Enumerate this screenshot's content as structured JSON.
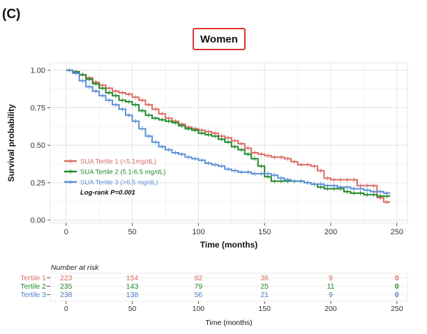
{
  "panel_label": "(C)",
  "chart_data": {
    "type": "line",
    "title": "Women",
    "xlabel": "Time (months)",
    "ylabel": "Survival probability",
    "xlim": [
      -12,
      258
    ],
    "ylim": [
      -0.02,
      1.05
    ],
    "xticks": [
      0,
      50,
      100,
      150,
      200,
      250
    ],
    "xtick_labels": [
      "0",
      "50",
      "100",
      "150",
      "200",
      "250"
    ],
    "yticks": [
      0,
      0.25,
      0.5,
      0.75,
      1.0
    ],
    "ytick_labels": [
      "0.00",
      "0.25",
      "0.50",
      "0.75",
      "1.00"
    ],
    "grid": true,
    "legend_position": "lower-left",
    "annotation": "Log-rank P=0.001",
    "series": [
      {
        "name": "SUA Tertile 1 (<5.1mg/dL)",
        "color": "#d96b63",
        "x": [
          0,
          5,
          10,
          15,
          20,
          25,
          30,
          35,
          40,
          45,
          50,
          55,
          60,
          65,
          70,
          75,
          80,
          85,
          90,
          95,
          100,
          105,
          110,
          115,
          120,
          125,
          130,
          135,
          140,
          145,
          150,
          155,
          160,
          165,
          170,
          175,
          180,
          185,
          190,
          195,
          200,
          205,
          210,
          215,
          220,
          225,
          230,
          235,
          240,
          245
        ],
        "y": [
          1.0,
          0.99,
          0.97,
          0.95,
          0.92,
          0.9,
          0.88,
          0.86,
          0.85,
          0.84,
          0.82,
          0.8,
          0.77,
          0.74,
          0.71,
          0.68,
          0.66,
          0.64,
          0.62,
          0.61,
          0.6,
          0.59,
          0.58,
          0.56,
          0.55,
          0.53,
          0.51,
          0.48,
          0.45,
          0.44,
          0.43,
          0.42,
          0.42,
          0.41,
          0.39,
          0.37,
          0.37,
          0.36,
          0.33,
          0.28,
          0.27,
          0.27,
          0.27,
          0.27,
          0.23,
          0.23,
          0.23,
          0.15,
          0.12,
          0.12
        ]
      },
      {
        "name": "SUA Tertile 2 (5.1-6.5 mg/dL)",
        "color": "#1f8a2a",
        "x": [
          0,
          5,
          10,
          15,
          20,
          25,
          30,
          35,
          40,
          45,
          50,
          55,
          60,
          65,
          70,
          75,
          80,
          85,
          90,
          95,
          100,
          105,
          110,
          115,
          120,
          125,
          130,
          135,
          140,
          145,
          150,
          155,
          160,
          165,
          170,
          175,
          180,
          185,
          190,
          195,
          200,
          205,
          210,
          215,
          220,
          225,
          230,
          235,
          240,
          245
        ],
        "y": [
          1.0,
          0.99,
          0.97,
          0.94,
          0.91,
          0.88,
          0.85,
          0.83,
          0.8,
          0.79,
          0.77,
          0.73,
          0.7,
          0.68,
          0.67,
          0.66,
          0.65,
          0.63,
          0.61,
          0.6,
          0.58,
          0.57,
          0.56,
          0.54,
          0.52,
          0.49,
          0.47,
          0.44,
          0.41,
          0.36,
          0.29,
          0.26,
          0.26,
          0.26,
          0.26,
          0.26,
          0.25,
          0.24,
          0.22,
          0.21,
          0.21,
          0.21,
          0.19,
          0.18,
          0.18,
          0.17,
          0.17,
          0.16,
          0.16,
          0.16
        ]
      },
      {
        "name": "SUA Tertile 3 (>6.5 mg/dL)",
        "color": "#5b8fd6",
        "x": [
          0,
          5,
          10,
          15,
          20,
          25,
          30,
          35,
          40,
          45,
          50,
          55,
          60,
          65,
          70,
          75,
          80,
          85,
          90,
          95,
          100,
          105,
          110,
          115,
          120,
          125,
          130,
          135,
          140,
          145,
          150,
          155,
          160,
          165,
          170,
          175,
          180,
          185,
          190,
          195,
          200,
          205,
          210,
          215,
          220,
          225,
          230,
          235,
          240,
          245
        ],
        "y": [
          1.0,
          0.98,
          0.93,
          0.89,
          0.86,
          0.83,
          0.8,
          0.77,
          0.74,
          0.7,
          0.66,
          0.61,
          0.56,
          0.52,
          0.49,
          0.47,
          0.45,
          0.44,
          0.42,
          0.41,
          0.4,
          0.38,
          0.37,
          0.36,
          0.34,
          0.33,
          0.32,
          0.32,
          0.31,
          0.31,
          0.31,
          0.3,
          0.28,
          0.27,
          0.26,
          0.26,
          0.25,
          0.24,
          0.24,
          0.23,
          0.23,
          0.22,
          0.22,
          0.21,
          0.21,
          0.2,
          0.19,
          0.19,
          0.18,
          0.18
        ]
      }
    ]
  },
  "risk_table": {
    "title": "Number at risk",
    "xlabel": "Time (months)",
    "ticks": [
      "0",
      "50",
      "100",
      "150",
      "200",
      "250"
    ],
    "rows": [
      {
        "label": "Tertile 1",
        "color": "#d96b63",
        "values": [
          "223",
          "154",
          "82",
          "36",
          "9",
          "0"
        ]
      },
      {
        "label": "Tertile 2",
        "color": "#1f8a2a",
        "values": [
          "235",
          "143",
          "79",
          "25",
          "11",
          "0"
        ]
      },
      {
        "label": "Tertile 3",
        "color": "#4a7fc4",
        "values": [
          "238",
          "138",
          "56",
          "21",
          "9",
          "0"
        ]
      }
    ]
  }
}
